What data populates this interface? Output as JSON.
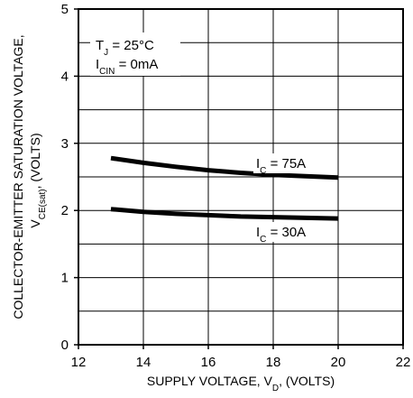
{
  "chart_data": {
    "type": "line",
    "title": "",
    "xlabel": "SUPPLY VOLTAGE, V",
    "xlabel_sub": "D",
    "xlabel_suffix": ", (VOLTS)",
    "ylabel_line1": "COLLECTOR-EMITTER SATURATION VOLTAGE,",
    "ylabel_line2_main": "V",
    "ylabel_line2_sub": "CE(sat)",
    "ylabel_line2_suffix": ", (VOLTS)",
    "xlim": [
      12,
      22
    ],
    "ylim": [
      0,
      5
    ],
    "x_ticks": [
      12,
      14,
      16,
      18,
      20,
      22
    ],
    "y_ticks": [
      0,
      1,
      2,
      3,
      4,
      5
    ],
    "x_tick_labels": [
      "12",
      "14",
      "16",
      "18",
      "20",
      "22"
    ],
    "y_tick_labels": [
      "0",
      "1",
      "2",
      "3",
      "4",
      "5"
    ],
    "grid": true,
    "conditions": {
      "tj_main": "T",
      "tj_sub": "J",
      "tj_value": " = 25°C",
      "icin_main": "I",
      "icin_sub": "CIN",
      "icin_value": " = 0mA"
    },
    "series": [
      {
        "name": "I_C = 75A",
        "label_main": "I",
        "label_sub": "C",
        "label_value": " = 75A",
        "x": [
          13,
          14,
          15,
          16,
          17,
          18,
          19,
          20
        ],
        "y": [
          2.78,
          2.71,
          2.65,
          2.6,
          2.56,
          2.53,
          2.51,
          2.49
        ]
      },
      {
        "name": "I_C = 30A",
        "label_main": "I",
        "label_sub": "C",
        "label_value": " = 30A",
        "x": [
          13,
          14,
          15,
          16,
          17,
          18,
          19,
          20
        ],
        "y": [
          2.02,
          1.98,
          1.95,
          1.93,
          1.91,
          1.9,
          1.89,
          1.88
        ]
      }
    ]
  }
}
